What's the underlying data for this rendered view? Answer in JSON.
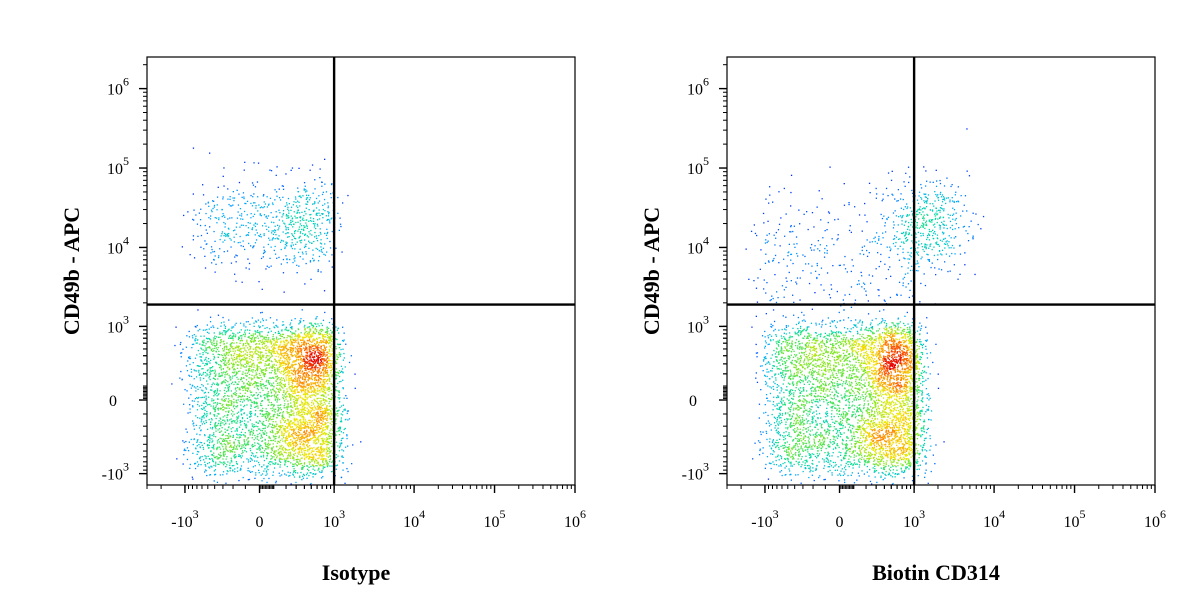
{
  "chart_data": [
    {
      "type": "scatter",
      "xlabel": "Isotype",
      "ylabel": "CD49b - APC",
      "x_scale": "biexponential",
      "y_scale": "biexponential",
      "xlim": [
        -3000,
        1000000
      ],
      "ylim": [
        -1400,
        2500000
      ],
      "x_ticks": [
        {
          "value": -1000,
          "base": "-10",
          "exp": "3"
        },
        {
          "value": 0,
          "base": "0",
          "exp": ""
        },
        {
          "value": 1000,
          "base": "10",
          "exp": "3"
        },
        {
          "value": 10000,
          "base": "10",
          "exp": "4"
        },
        {
          "value": 100000,
          "base": "10",
          "exp": "5"
        },
        {
          "value": 1000000,
          "base": "10",
          "exp": "6"
        }
      ],
      "y_ticks": [
        {
          "value": -1000,
          "base": "-10",
          "exp": "3"
        },
        {
          "value": 0,
          "base": "0",
          "exp": ""
        },
        {
          "value": 1000,
          "base": "10",
          "exp": "3"
        },
        {
          "value": 10000,
          "base": "10",
          "exp": "4"
        },
        {
          "value": 100000,
          "base": "10",
          "exp": "5"
        },
        {
          "value": 1000000,
          "base": "10",
          "exp": "6"
        }
      ],
      "gate": {
        "x": 1000,
        "y": 1900
      },
      "populations": [
        {
          "cx": 200,
          "cy": 50,
          "sx": 450,
          "sy": 450,
          "n": 5200
        },
        {
          "cx": 150,
          "cy": 20000,
          "sx": 400,
          "sy": 0.3,
          "n": 700
        }
      ]
    },
    {
      "type": "scatter",
      "xlabel": "Biotin CD314",
      "ylabel": "CD49b - APC",
      "x_scale": "biexponential",
      "y_scale": "biexponential",
      "xlim": [
        -3000,
        1000000
      ],
      "ylim": [
        -1400,
        2500000
      ],
      "x_ticks": [
        {
          "value": -1000,
          "base": "-10",
          "exp": "3"
        },
        {
          "value": 0,
          "base": "0",
          "exp": ""
        },
        {
          "value": 1000,
          "base": "10",
          "exp": "3"
        },
        {
          "value": 10000,
          "base": "10",
          "exp": "4"
        },
        {
          "value": 100000,
          "base": "10",
          "exp": "5"
        },
        {
          "value": 1000000,
          "base": "10",
          "exp": "6"
        }
      ],
      "y_ticks": [
        {
          "value": -1000,
          "base": "-10",
          "exp": "3"
        },
        {
          "value": 0,
          "base": "0",
          "exp": ""
        },
        {
          "value": 1000,
          "base": "10",
          "exp": "3"
        },
        {
          "value": 10000,
          "base": "10",
          "exp": "4"
        },
        {
          "value": 100000,
          "base": "10",
          "exp": "5"
        },
        {
          "value": 1000000,
          "base": "10",
          "exp": "6"
        }
      ],
      "gate": {
        "x": 1000,
        "y": 1900
      },
      "populations": [
        {
          "cx": 200,
          "cy": 50,
          "sx": 500,
          "sy": 450,
          "n": 5200
        },
        {
          "cx": 1500,
          "cy": 20000,
          "sx": 0.25,
          "sy": 0.28,
          "n": 450
        },
        {
          "cx": 0,
          "cy": 8000,
          "sx": 600,
          "sy": 0.45,
          "n": 350
        }
      ]
    }
  ]
}
